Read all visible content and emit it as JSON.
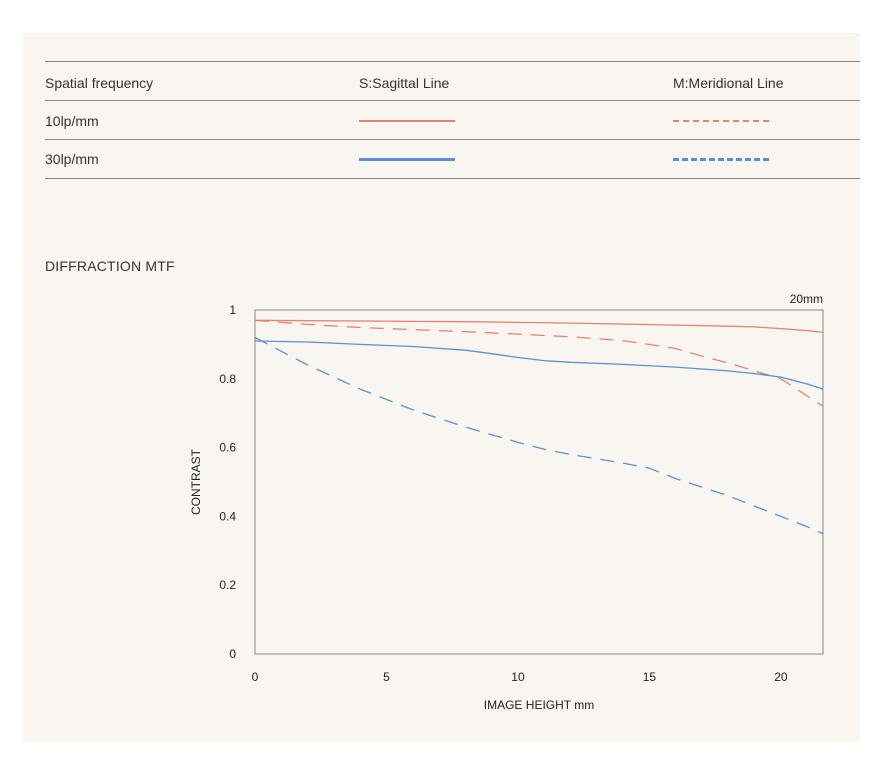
{
  "legend": {
    "header": [
      "Spatial frequency",
      "S:Sagittal Line",
      "M:Meridional Line"
    ],
    "rows": [
      {
        "label": "10lp/mm",
        "color": "#e8806a"
      },
      {
        "label": "30lp/mm",
        "color": "#5b8fd4"
      }
    ]
  },
  "section_title": "DIFFRACTION MTF",
  "chart_data": {
    "type": "line",
    "title": "",
    "corner_label": "20mm",
    "xlabel": "IMAGE HEIGHT  mm",
    "ylabel": "CONTRAST",
    "xlim": [
      0,
      21.6
    ],
    "ylim": [
      0,
      1
    ],
    "xticks": [
      0,
      5,
      10,
      15,
      20
    ],
    "yticks": [
      0,
      0.2,
      0.4,
      0.6,
      0.8,
      1
    ],
    "grid": true,
    "series": [
      {
        "name": "10lp/mm S:Sagittal Line",
        "color": "#e8806a",
        "style": "solid",
        "x": [
          0,
          2,
          4,
          6,
          8,
          10,
          12,
          14,
          16,
          18,
          19,
          20,
          21,
          21.6
        ],
        "y": [
          0.97,
          0.969,
          0.968,
          0.967,
          0.966,
          0.964,
          0.962,
          0.959,
          0.956,
          0.953,
          0.951,
          0.946,
          0.94,
          0.935
        ]
      },
      {
        "name": "10lp/mm M:Meridional Line",
        "color": "#e8806a",
        "style": "dashed",
        "x": [
          0,
          2,
          4,
          6,
          8,
          10,
          12,
          14,
          16,
          17,
          18,
          19,
          20,
          21,
          21.6
        ],
        "y": [
          0.97,
          0.958,
          0.949,
          0.943,
          0.937,
          0.93,
          0.922,
          0.911,
          0.888,
          0.866,
          0.846,
          0.823,
          0.8,
          0.75,
          0.72
        ]
      },
      {
        "name": "30lp/mm S:Sagittal Line",
        "color": "#5b8fd4",
        "style": "solid",
        "x": [
          0,
          2,
          4,
          6,
          8,
          9,
          10,
          11,
          12,
          14,
          16,
          18,
          19,
          20,
          21,
          21.6
        ],
        "y": [
          0.91,
          0.907,
          0.9,
          0.894,
          0.883,
          0.873,
          0.862,
          0.853,
          0.848,
          0.842,
          0.834,
          0.823,
          0.815,
          0.805,
          0.785,
          0.77
        ]
      },
      {
        "name": "30lp/mm M:Meridional Line",
        "color": "#5b8fd4",
        "style": "dashed",
        "x": [
          0,
          2,
          4,
          6,
          8,
          10,
          11,
          12,
          14,
          15,
          16,
          18,
          20,
          21,
          21.6
        ],
        "y": [
          0.92,
          0.84,
          0.77,
          0.71,
          0.66,
          0.615,
          0.595,
          0.58,
          0.555,
          0.54,
          0.51,
          0.46,
          0.4,
          0.37,
          0.35
        ]
      }
    ]
  }
}
